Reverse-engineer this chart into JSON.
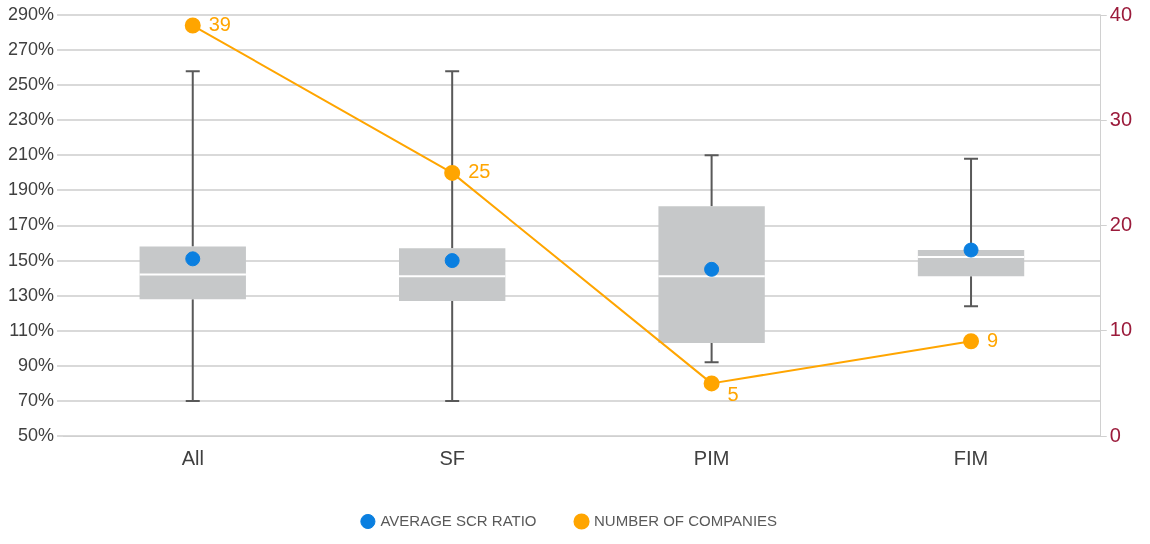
{
  "chart_data": {
    "type": "box",
    "categories": [
      "All",
      "SF",
      "PIM",
      "FIM"
    ],
    "series": [
      {
        "type": "box",
        "color": "#c6c8c9",
        "boxes": [
          {
            "low": 70,
            "q1": 128,
            "median": 142,
            "q3": 158,
            "high": 258
          },
          {
            "low": 70,
            "q1": 127,
            "median": 141,
            "q3": 157,
            "high": 258
          },
          {
            "low": 92,
            "q1": 103,
            "median": 141,
            "q3": 181,
            "high": 210
          },
          {
            "low": 124,
            "q1": 141,
            "median": 152,
            "q3": 156,
            "high": 208
          }
        ]
      },
      {
        "type": "scatter",
        "name": "AVERAGE SCR RATIO",
        "color": "#0a7fe0",
        "values": [
          151,
          150,
          145,
          156
        ]
      },
      {
        "type": "line",
        "name": "NUMBER OF COMPANIES",
        "axis": "y2",
        "color": "#ffa500",
        "values": [
          39,
          25,
          5,
          9
        ],
        "value_labels": [
          "39",
          "25",
          "5",
          "9"
        ]
      }
    ],
    "ylim": [
      50,
      290
    ],
    "yticks": [
      {
        "value": 50,
        "label": "50%"
      },
      {
        "value": 70,
        "label": "70%"
      },
      {
        "value": 90,
        "label": "90%"
      },
      {
        "value": 110,
        "label": "110%"
      },
      {
        "value": 130,
        "label": "130%"
      },
      {
        "value": 150,
        "label": "150%"
      },
      {
        "value": 170,
        "label": "170%"
      },
      {
        "value": 190,
        "label": "190%"
      },
      {
        "value": 210,
        "label": "210%"
      },
      {
        "value": 230,
        "label": "230%"
      },
      {
        "value": 250,
        "label": "250%"
      },
      {
        "value": 270,
        "label": "270%"
      },
      {
        "value": 290,
        "label": "290%"
      }
    ],
    "y2lim": [
      0,
      40
    ],
    "y2ticks": [
      0,
      10,
      20,
      30,
      40
    ],
    "grid": "y",
    "legend": "bottom",
    "marker": "circle"
  }
}
